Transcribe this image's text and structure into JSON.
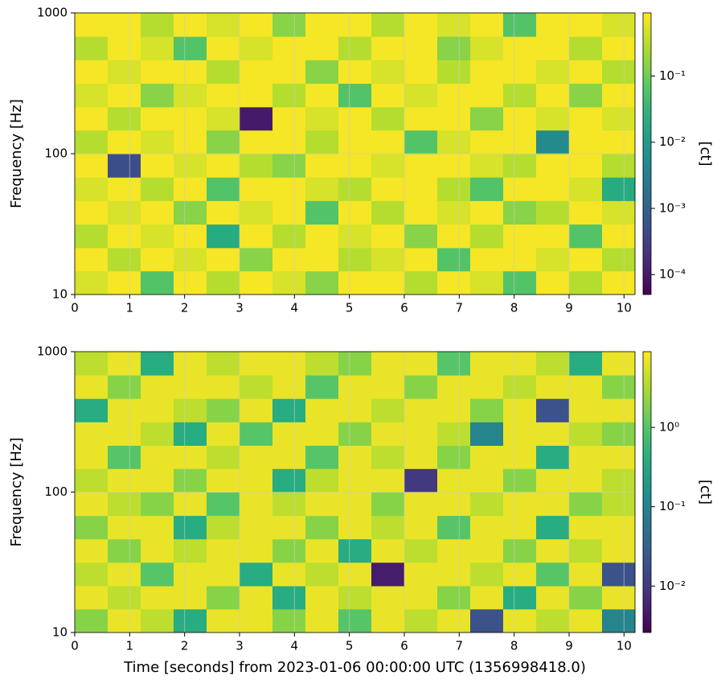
{
  "chart_data": [
    {
      "type": "heatmap",
      "ylabel": "Frequency [Hz]",
      "colorscale": "viridis",
      "grid": true,
      "yscale": "log",
      "xbins": [
        0,
        0.6,
        1.2,
        1.8,
        2.4,
        3.0,
        3.6,
        4.2,
        4.8,
        5.4,
        6.0,
        6.6,
        7.2,
        7.8,
        8.4,
        9.0,
        9.6,
        10.2
      ],
      "ybins": [
        10,
        14.7,
        21.5,
        31.6,
        46.4,
        68.1,
        100,
        147,
        215,
        316,
        464,
        681,
        1000
      ],
      "z": [
        [
          0.5,
          0.8,
          0.06,
          0.8,
          0.3,
          0.8,
          0.5,
          0.15,
          0.8,
          0.8,
          0.3,
          0.8,
          0.5,
          0.06,
          0.8,
          0.3,
          0.8
        ],
        [
          0.8,
          0.3,
          0.8,
          0.5,
          0.8,
          0.15,
          0.8,
          0.8,
          0.3,
          0.5,
          0.8,
          0.06,
          0.8,
          0.8,
          0.5,
          0.8,
          0.3
        ],
        [
          0.3,
          0.8,
          0.5,
          0.8,
          0.02,
          0.8,
          0.3,
          0.8,
          0.5,
          0.8,
          0.15,
          0.8,
          0.3,
          0.8,
          0.8,
          0.06,
          0.8
        ],
        [
          0.8,
          0.5,
          0.8,
          0.15,
          0.8,
          0.5,
          0.8,
          0.06,
          0.8,
          0.3,
          0.8,
          0.5,
          0.8,
          0.15,
          0.3,
          0.8,
          0.5
        ],
        [
          0.5,
          0.8,
          0.3,
          0.8,
          0.06,
          0.8,
          0.8,
          0.5,
          0.3,
          0.8,
          0.8,
          0.3,
          0.06,
          0.8,
          0.8,
          0.5,
          0.02
        ],
        [
          0.8,
          0.0005,
          0.8,
          0.5,
          0.8,
          0.3,
          0.15,
          0.8,
          0.8,
          0.5,
          0.8,
          0.8,
          0.5,
          0.3,
          0.8,
          0.8,
          0.3
        ],
        [
          0.3,
          0.8,
          0.5,
          0.8,
          0.15,
          0.8,
          0.8,
          0.3,
          0.8,
          0.8,
          0.06,
          0.5,
          0.8,
          0.8,
          0.005,
          0.8,
          0.8
        ],
        [
          0.8,
          0.3,
          0.8,
          0.8,
          0.5,
          0.0001,
          0.8,
          0.5,
          0.8,
          0.3,
          0.8,
          0.8,
          0.15,
          0.8,
          0.5,
          0.8,
          0.5
        ],
        [
          0.5,
          0.8,
          0.15,
          0.5,
          0.8,
          0.8,
          0.3,
          0.8,
          0.06,
          0.8,
          0.5,
          0.8,
          0.8,
          0.3,
          0.8,
          0.15,
          0.8
        ],
        [
          0.8,
          0.5,
          0.8,
          0.8,
          0.3,
          0.8,
          0.8,
          0.15,
          0.8,
          0.5,
          0.8,
          0.3,
          0.8,
          0.8,
          0.5,
          0.8,
          0.3
        ],
        [
          0.3,
          0.8,
          0.5,
          0.06,
          0.8,
          0.5,
          0.8,
          0.8,
          0.3,
          0.8,
          0.8,
          0.15,
          0.5,
          0.8,
          0.8,
          0.3,
          0.8
        ],
        [
          0.8,
          0.8,
          0.3,
          0.8,
          0.5,
          0.8,
          0.15,
          0.8,
          0.8,
          0.3,
          0.8,
          0.5,
          0.8,
          0.06,
          0.8,
          0.8,
          0.5
        ]
      ],
      "xlim": [
        0,
        10.2
      ],
      "xticks": [
        0,
        1,
        2,
        3,
        4,
        5,
        6,
        7,
        8,
        9,
        10
      ],
      "ylim": [
        10,
        1000
      ],
      "yticks": [
        10,
        100,
        1000
      ],
      "clim": [
        5e-05,
        0.9
      ],
      "colorbar_label": "[ct]",
      "cticks": [
        {
          "value": 0.1,
          "label": "10⁻¹"
        },
        {
          "value": 0.01,
          "label": "10⁻²"
        },
        {
          "value": 0.001,
          "label": "10⁻³"
        },
        {
          "value": 0.0001,
          "label": "10⁻⁴"
        }
      ]
    },
    {
      "type": "heatmap",
      "ylabel": "Frequency [Hz]",
      "xlabel": "Time [seconds] from 2023-01-06 00:00:00 UTC (1356998418.0)",
      "colorscale": "viridis",
      "grid": true,
      "yscale": "log",
      "xbins": [
        0,
        0.6,
        1.2,
        1.8,
        2.4,
        3.0,
        3.6,
        4.2,
        4.8,
        5.4,
        6.0,
        6.6,
        7.2,
        7.8,
        8.4,
        9.0,
        9.6,
        10.2
      ],
      "ybins": [
        10,
        14.7,
        21.5,
        31.6,
        46.4,
        68.1,
        100,
        147,
        215,
        316,
        464,
        681,
        1000
      ],
      "z": [
        [
          2,
          7,
          4,
          0.4,
          7,
          7,
          2,
          7,
          1,
          7,
          4,
          7,
          0.02,
          7,
          4,
          7,
          0.1
        ],
        [
          7,
          4,
          7,
          7,
          2,
          7,
          0.4,
          7,
          4,
          7,
          7,
          2,
          7,
          0.4,
          7,
          2,
          7
        ],
        [
          4,
          7,
          1,
          7,
          7,
          0.4,
          7,
          4,
          7,
          0.005,
          7,
          7,
          4,
          7,
          1,
          7,
          0.02
        ],
        [
          7,
          2,
          7,
          4,
          7,
          7,
          2,
          7,
          0.4,
          7,
          4,
          7,
          7,
          2,
          7,
          4,
          7
        ],
        [
          2,
          7,
          7,
          0.4,
          4,
          7,
          7,
          2,
          7,
          4,
          7,
          1,
          7,
          7,
          0.4,
          7,
          7
        ],
        [
          7,
          4,
          2,
          7,
          1,
          7,
          4,
          7,
          7,
          2,
          7,
          7,
          4,
          7,
          7,
          2,
          4
        ],
        [
          4,
          7,
          7,
          2,
          7,
          7,
          0.4,
          4,
          7,
          7,
          0.01,
          7,
          7,
          2,
          7,
          7,
          4
        ],
        [
          7,
          1,
          7,
          7,
          4,
          7,
          7,
          1,
          7,
          4,
          7,
          2,
          7,
          7,
          0.4,
          7,
          7
        ],
        [
          7,
          7,
          4,
          0.4,
          7,
          1,
          7,
          7,
          2,
          7,
          7,
          4,
          0.1,
          7,
          7,
          4,
          2
        ],
        [
          0.4,
          7,
          7,
          4,
          2,
          7,
          0.4,
          7,
          7,
          4,
          7,
          7,
          2,
          7,
          0.02,
          7,
          7
        ],
        [
          7,
          2,
          7,
          7,
          7,
          4,
          7,
          1,
          7,
          7,
          2,
          7,
          7,
          4,
          7,
          7,
          2
        ],
        [
          4,
          7,
          0.4,
          7,
          4,
          7,
          7,
          4,
          2,
          7,
          7,
          1,
          7,
          7,
          4,
          0.4,
          7
        ]
      ],
      "xlim": [
        0,
        10.2
      ],
      "xticks": [
        0,
        1,
        2,
        3,
        4,
        5,
        6,
        7,
        8,
        9,
        10
      ],
      "ylim": [
        10,
        1000
      ],
      "yticks": [
        10,
        100,
        1000
      ],
      "clim": [
        0.0026,
        9
      ],
      "colorbar_label": "[ct]",
      "cticks": [
        {
          "value": 1,
          "label": "10⁰"
        },
        {
          "value": 0.1,
          "label": "10⁻¹"
        },
        {
          "value": 0.01,
          "label": "10⁻²"
        }
      ]
    }
  ]
}
